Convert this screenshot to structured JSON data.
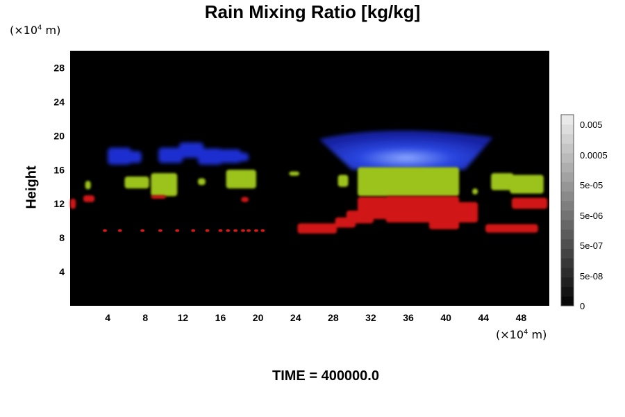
{
  "chart_data": {
    "type": "heatmap",
    "title": "Rain Mixing Ratio [kg/kg]",
    "ylabel": "Height",
    "y_unit": "(×10⁴ m)",
    "x_unit": "(×10⁴ m)",
    "xlim": [
      0,
      51
    ],
    "ylim": [
      0,
      30
    ],
    "x_ticks": [
      "4",
      "8",
      "12",
      "16",
      "20",
      "24",
      "28",
      "32",
      "36",
      "40",
      "44",
      "48"
    ],
    "y_ticks": [
      "4",
      "8",
      "12",
      "16",
      "20",
      "24",
      "28"
    ],
    "colorbar_ticks": [
      "0.005",
      "0.0005",
      "5e-05",
      "5e-06",
      "5e-07",
      "5e-08",
      "0"
    ],
    "footer": "TIME = 400000.0",
    "colors": {
      "background": "#000000",
      "upper": "#1a2fd0",
      "middle": "#9cc21a",
      "lower": "#d01818"
    }
  },
  "unit_top": {
    "base": "(×10",
    "exp": "4",
    "tail": " m)"
  },
  "unit_bottom": {
    "base": "(×10",
    "exp": "4",
    "tail": " m)"
  }
}
